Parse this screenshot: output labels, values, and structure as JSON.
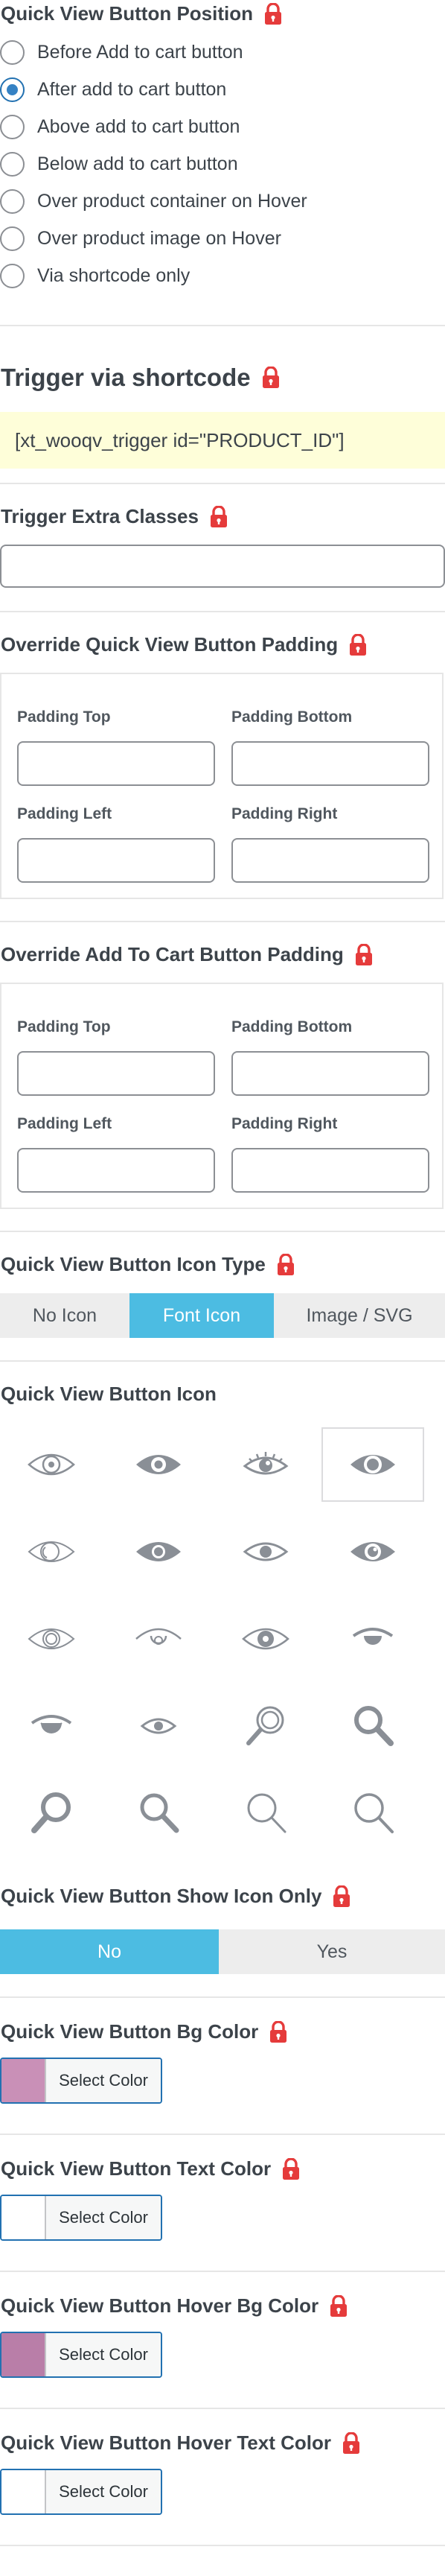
{
  "button_position": {
    "title": "Quick View Button Position",
    "options": [
      {
        "label": "Before Add to cart button",
        "checked": false
      },
      {
        "label": "After add to cart button",
        "checked": true
      },
      {
        "label": "Above add to cart button",
        "checked": false
      },
      {
        "label": "Below add to cart button",
        "checked": false
      },
      {
        "label": "Over product container on Hover",
        "checked": false
      },
      {
        "label": "Over product image on Hover",
        "checked": false
      },
      {
        "label": "Via shortcode only",
        "checked": false
      }
    ]
  },
  "trigger_shortcode": {
    "title": "Trigger via shortcode",
    "code": "[xt_wooqv_trigger id=\"PRODUCT_ID\"]"
  },
  "trigger_classes": {
    "title": "Trigger Extra Classes",
    "value": ""
  },
  "qv_padding": {
    "title": "Override Quick View Button Padding",
    "top_label": "Padding Top",
    "bottom_label": "Padding Bottom",
    "left_label": "Padding Left",
    "right_label": "Padding Right"
  },
  "atc_padding": {
    "title": "Override Add To Cart Button Padding",
    "top_label": "Padding Top",
    "bottom_label": "Padding Bottom",
    "left_label": "Padding Left",
    "right_label": "Padding Right"
  },
  "icon_type": {
    "title": "Quick View Button Icon Type",
    "options": [
      "No Icon",
      "Font Icon",
      "Image / SVG"
    ],
    "selected": "Font Icon"
  },
  "button_icon": {
    "title": "Quick View Button Icon",
    "icons": [
      "eye-outline-icon",
      "eye-solid-icon",
      "eye-lashes-icon",
      "eye-bold-icon",
      "eye-thin-icon",
      "eye-filled-icon",
      "eye-simple-icon",
      "eye-pupil-icon",
      "eye-ring-icon",
      "eye-lid-icon",
      "eye-round-icon",
      "eye-half-icon",
      "eye-closed-icon",
      "eye-small-icon",
      "magnifier-ring-icon",
      "magnifier-bold-icon",
      "magnifier-solid-icon",
      "magnifier-filled-icon",
      "magnifier-thin-icon",
      "magnifier-outline-icon"
    ],
    "selected_index": 3
  },
  "show_icon_only": {
    "title": "Quick View Button Show Icon Only",
    "options": [
      "No",
      "Yes"
    ],
    "selected": "No"
  },
  "colors": {
    "select_label": "Select Color",
    "bg_color": {
      "title": "Quick View Button Bg Color",
      "value": "#c990b7"
    },
    "text_color": {
      "title": "Quick View Button Text Color",
      "value": "#ffffff"
    },
    "hover_bg_color": {
      "title": "Quick View Button Hover Bg Color",
      "value": "#b97ea8"
    },
    "hover_text_color": {
      "title": "Quick View Button Hover Text Color",
      "value": "#ffffff"
    }
  },
  "theme": {
    "accent": "#4cbce2",
    "lock_color": "#e53b3b",
    "radio_checked": "#2271b1"
  }
}
